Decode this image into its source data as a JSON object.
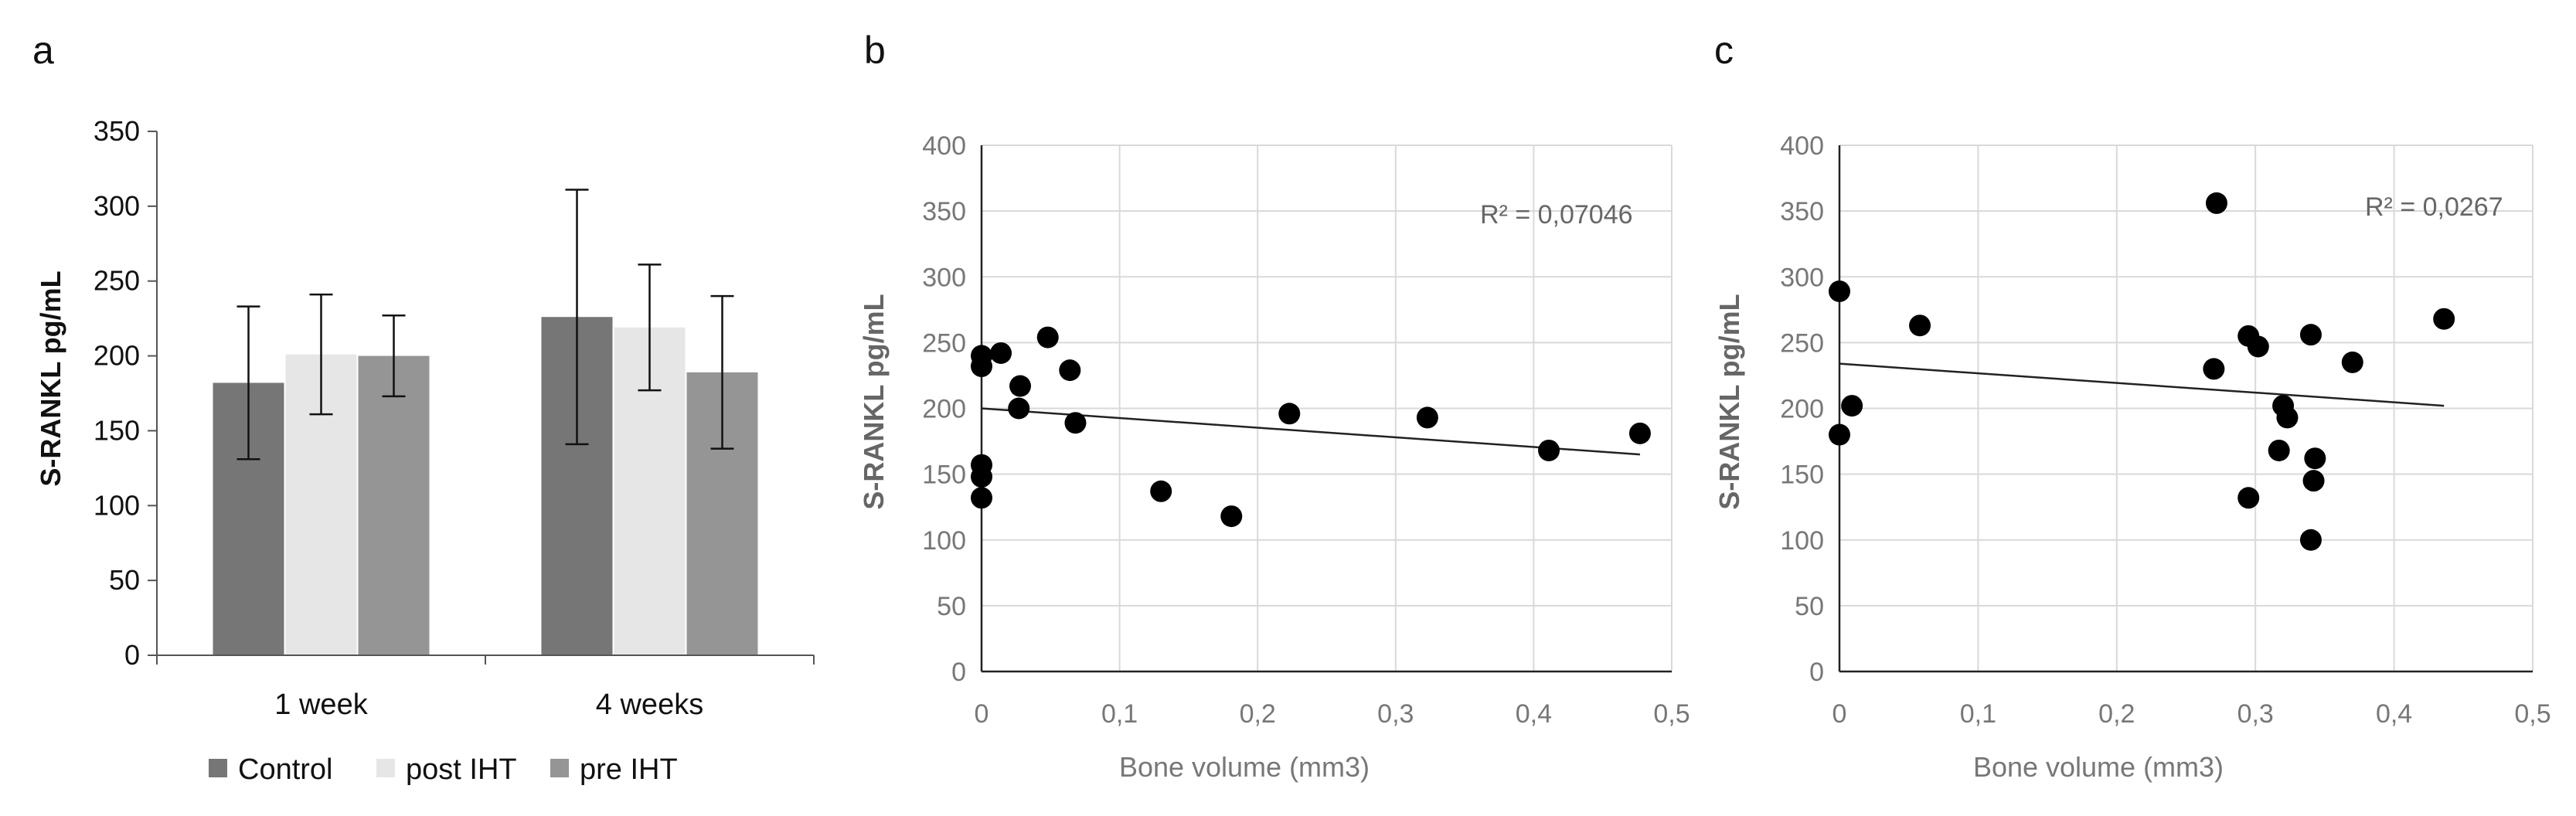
{
  "chart_data": [
    {
      "panel": "a",
      "type": "bar",
      "categories": [
        "1 week",
        "4 weeks"
      ],
      "series": [
        {
          "name": "Control",
          "color": "#767676",
          "values": [
            182,
            226
          ],
          "error": [
            51,
            85
          ]
        },
        {
          "name": "post IHT",
          "color": "#e6e6e6",
          "values": [
            201,
            219
          ],
          "error": [
            40,
            42
          ]
        },
        {
          "name": "pre IHT",
          "color": "#959595",
          "values": [
            200,
            189
          ],
          "error": [
            27,
            51
          ]
        }
      ],
      "title": "",
      "xlabel": "",
      "ylabel": "S-RANKL pg/mL",
      "ylim": [
        0,
        350
      ],
      "yticks": [
        0,
        50,
        100,
        150,
        200,
        250,
        300,
        350
      ],
      "grid": false,
      "legend": "bottom"
    },
    {
      "panel": "b",
      "type": "scatter",
      "xlabel": "Bone volume (mm3)",
      "ylabel": "S-RANKL pg/mL",
      "xlim": [
        0,
        0.5
      ],
      "ylim": [
        0,
        400
      ],
      "xticks": [
        "0",
        "0,1",
        "0,2",
        "0,3",
        "0,4",
        "0,5"
      ],
      "yticks": [
        0,
        50,
        100,
        150,
        200,
        250,
        300,
        350,
        400
      ],
      "grid": true,
      "points": [
        {
          "x": 0.0,
          "y": 240
        },
        {
          "x": 0.0,
          "y": 232
        },
        {
          "x": 0.0,
          "y": 157
        },
        {
          "x": 0.0,
          "y": 148
        },
        {
          "x": 0.0,
          "y": 132
        },
        {
          "x": 0.014,
          "y": 242
        },
        {
          "x": 0.028,
          "y": 217
        },
        {
          "x": 0.027,
          "y": 200
        },
        {
          "x": 0.048,
          "y": 254
        },
        {
          "x": 0.064,
          "y": 229
        },
        {
          "x": 0.068,
          "y": 189
        },
        {
          "x": 0.13,
          "y": 137
        },
        {
          "x": 0.181,
          "y": 118
        },
        {
          "x": 0.223,
          "y": 196
        },
        {
          "x": 0.323,
          "y": 193
        },
        {
          "x": 0.411,
          "y": 168
        },
        {
          "x": 0.477,
          "y": 181
        }
      ],
      "trendline": {
        "x": [
          0.0,
          0.477
        ],
        "y": [
          200,
          165
        ]
      },
      "annotation": "R² = 0,07046"
    },
    {
      "panel": "c",
      "type": "scatter",
      "xlabel": "Bone volume (mm3)",
      "ylabel": "S-RANKL pg/mL",
      "xlim": [
        0,
        0.5
      ],
      "ylim": [
        0,
        400
      ],
      "xticks": [
        "0",
        "0,1",
        "0,2",
        "0,3",
        "0,4",
        "0,5"
      ],
      "yticks": [
        0,
        50,
        100,
        150,
        200,
        250,
        300,
        350,
        400
      ],
      "grid": true,
      "points": [
        {
          "x": 0.0,
          "y": 289
        },
        {
          "x": 0.0,
          "y": 180
        },
        {
          "x": 0.009,
          "y": 202
        },
        {
          "x": 0.058,
          "y": 263
        },
        {
          "x": 0.272,
          "y": 356
        },
        {
          "x": 0.27,
          "y": 230
        },
        {
          "x": 0.295,
          "y": 255
        },
        {
          "x": 0.302,
          "y": 247
        },
        {
          "x": 0.295,
          "y": 132
        },
        {
          "x": 0.317,
          "y": 168
        },
        {
          "x": 0.32,
          "y": 202
        },
        {
          "x": 0.323,
          "y": 193
        },
        {
          "x": 0.34,
          "y": 256
        },
        {
          "x": 0.342,
          "y": 145
        },
        {
          "x": 0.343,
          "y": 162
        },
        {
          "x": 0.34,
          "y": 100
        },
        {
          "x": 0.37,
          "y": 235
        },
        {
          "x": 0.436,
          "y": 268
        }
      ],
      "trendline": {
        "x": [
          0.0,
          0.436
        ],
        "y": [
          234,
          202
        ]
      },
      "annotation": "R² = 0,0267"
    }
  ]
}
